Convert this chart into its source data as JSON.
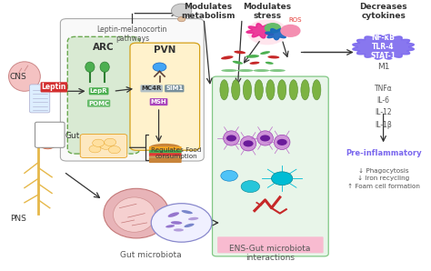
{
  "bg_color": "#ffffff",
  "layout": {
    "figsize": [
      4.74,
      2.98
    ],
    "dpi": 100
  },
  "colors": {
    "arc_fill": "#d9ead3",
    "arc_edge": "#6aa84f",
    "pvn_fill": "#fff2cc",
    "pvn_edge": "#d4a017",
    "outer_fill": "#f9f9f9",
    "outer_edge": "#aaaaaa",
    "lepr_bg": "#4caf50",
    "pomc_bg": "#66bb6a",
    "mc4r_bg": "#b0bec5",
    "sim1_bg": "#78909c",
    "msh_bg": "#ab47bc",
    "leptin_bg": "#d32f2f",
    "nfkb_color": "#7b68ee",
    "brain_fill": "#f0d0c0",
    "stress_pink": "#e91e8c",
    "stress_green": "#4caf50",
    "stress_blue": "#1565c0",
    "stress_red": "#e53935",
    "arrow_color": "#333333",
    "text_dark": "#333333",
    "text_mid": "#555555",
    "villi_fill": "#8bc34a",
    "wall_fill": "#e8f5e9",
    "wall_edge": "#81c784",
    "bact_pink": "#e57373",
    "bact_green": "#66bb6a",
    "bact_purple": "#9575cd",
    "intestine_fill": "#e8b4b8",
    "intestine_edge": "#c47878",
    "nerve_teal": "#00bcd4",
    "vessel_red": "#c62828",
    "immune_purple": "#ba68c8",
    "immune_dark": "#7b1fa2"
  },
  "texts": {
    "leptin_melanocortin": "Leptin-melanocortin\npathways",
    "arc": "ARC",
    "pvn": "PVN",
    "cns": "CNS",
    "pns": "PNS",
    "gut": "Gut",
    "gut_microbiota": "Gut microbiota",
    "ens_gut": "ENS-Gut microbiota\ninteractions",
    "modulates_metabolism": "Modulates\nmetabolism",
    "modulates_stress": "Modulates\nstress",
    "decreases_cytokines": "Decreases\ncytokines",
    "regulates_food": "Regulates Food\nconsumption",
    "lepr": "LepR",
    "pomc": "POMC",
    "mc4r": "MC4R",
    "sim1": "SIM1",
    "msh": "MSH",
    "leptin": "Leptin",
    "ros": "ROS",
    "m1": "M1",
    "nfkb": "NF-κB\nTLR-4\nSTAT-1",
    "cytokines": "TNFα\nIL-6\nIL-12\nIL-1β",
    "pre_inflammatory": "Pre-inflammatory",
    "effects": "↓ Phagocytosis\n↓ Iron recycling\n↑ Foam cell formation"
  }
}
